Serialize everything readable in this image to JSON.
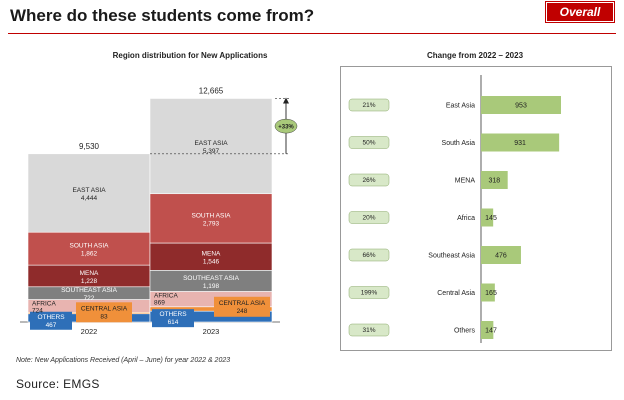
{
  "header": {
    "title": "Where do these students come from?",
    "badge": "Overall"
  },
  "note": "Note: New Applications Received (April – June) for year 2022 & 2023",
  "source": "Source: EMGS",
  "chart_data": [
    {
      "type": "stacked-bar",
      "title": "Region distribution for New Applications",
      "categories": [
        "2022",
        "2023"
      ],
      "totals": [
        9530,
        12665
      ],
      "totals_labels": [
        "9,530",
        "12,665"
      ],
      "growth_label": "+33%",
      "series": [
        {
          "name": "OTHERS",
          "values": [
            467,
            614
          ],
          "labels": [
            "467",
            "614"
          ],
          "color": "#2e6fb8"
        },
        {
          "name": "CENTRAL ASIA",
          "values": [
            83,
            248
          ],
          "labels": [
            "83",
            "248"
          ],
          "color": "#f0903a"
        },
        {
          "name": "AFRICA",
          "values": [
            724,
            869
          ],
          "labels": [
            "724",
            "869"
          ],
          "color": "#e8b4b0"
        },
        {
          "name": "SOUTHEAST ASIA",
          "values": [
            722,
            1198
          ],
          "labels": [
            "722",
            "1,198"
          ],
          "color": "#7f7f7f"
        },
        {
          "name": "MENA",
          "values": [
            1228,
            1546
          ],
          "labels": [
            "1,228",
            "1,546"
          ],
          "color": "#8f2b2b"
        },
        {
          "name": "SOUTH ASIA",
          "values": [
            1862,
            2793
          ],
          "labels": [
            "1,862",
            "2,793"
          ],
          "color": "#c0504d"
        },
        {
          "name": "EAST ASIA",
          "values": [
            4444,
            5397
          ],
          "labels": [
            "4,444",
            "5,397"
          ],
          "color": "#d9d9d9"
        }
      ]
    },
    {
      "type": "bar",
      "orientation": "horizontal",
      "title": "Change from 2022 – 2023",
      "categories": [
        "East Asia",
        "South Asia",
        "MENA",
        "Africa",
        "Southeast Asia",
        "Central Asia",
        "Others"
      ],
      "values": [
        953,
        931,
        318,
        145,
        476,
        165,
        147
      ],
      "pct_labels": [
        "21%",
        "50%",
        "26%",
        "20%",
        "66%",
        "199%",
        "31%"
      ],
      "xlim": [
        0,
        953
      ],
      "bar_color": "#a9c97a",
      "pct_box_color": "#d8e8c8"
    }
  ]
}
